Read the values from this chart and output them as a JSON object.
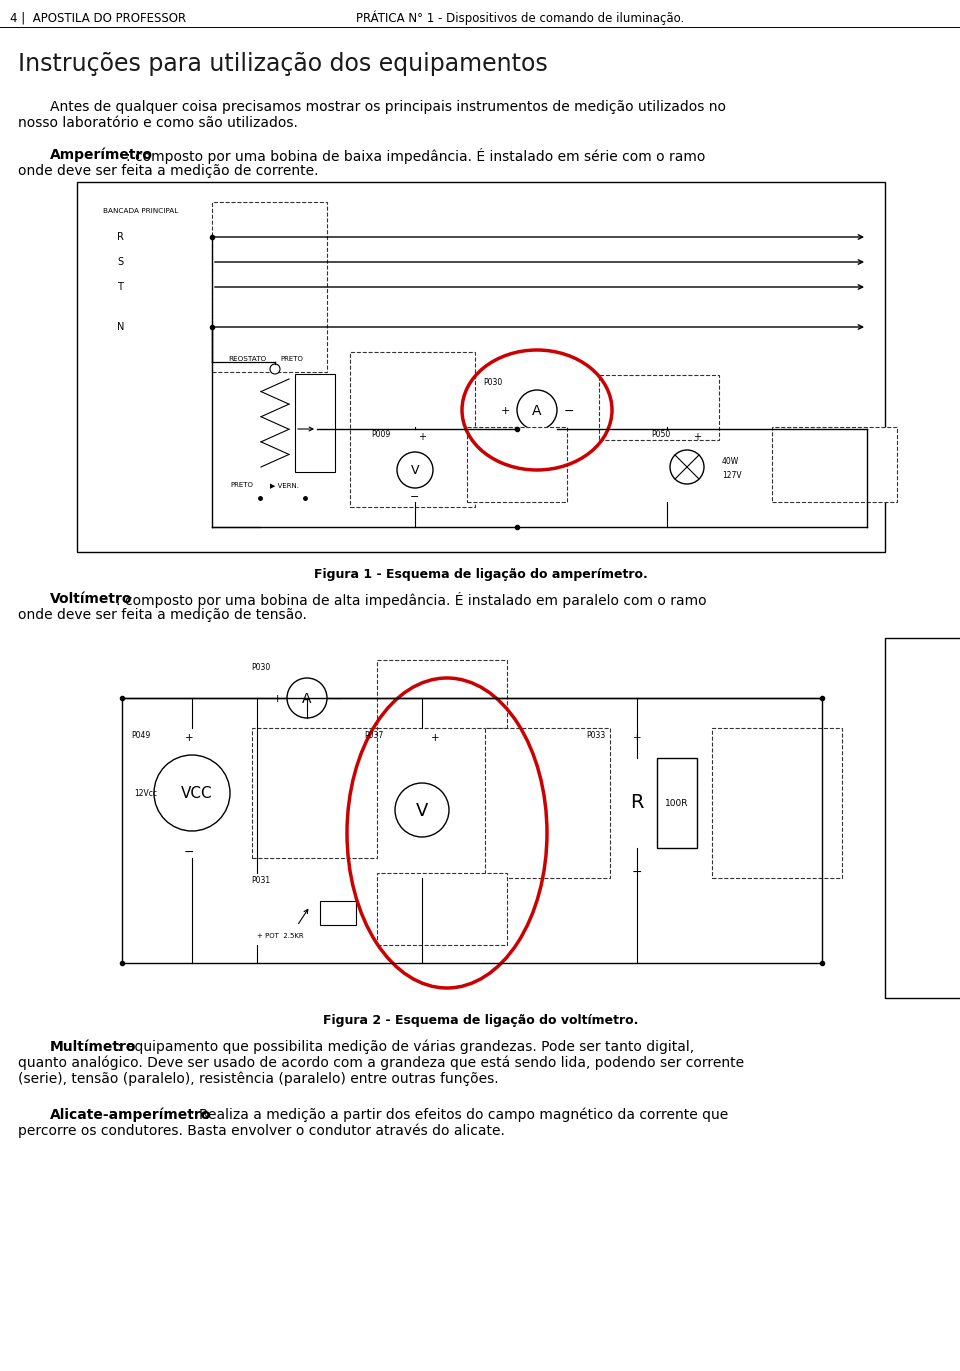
{
  "page_title_left": "4 |  APOSTILA DO PROFESSOR",
  "page_title_right": "PRÁTICA N° 1 - Dispositivos de comando de iluminação.",
  "section_title": "Instruções para utilização dos equipamentos",
  "intro_line1": "Antes de qualquer coisa precisamos mostrar os principais instrumentos de medição utilizados no",
  "intro_line2": "nosso laboratório e como são utilizados.",
  "amp_label": "Amperímetro",
  "amp_rest": ": composto por uma bobina de baixa impedância. É instalado em série com o ramo",
  "amp_line2": "onde deve ser feita a medição de corrente.",
  "fig1_caption": "Figura 1 - Esquema de ligação do amperímetro.",
  "volt_label": "Voltímetro",
  "volt_rest": ": composto por uma bobina de alta impedância. É instalado em paralelo com o ramo",
  "volt_line2": "onde deve ser feita a medição de tensão.",
  "fig2_caption": "Figura 2 - Esquema de ligação do voltímetro.",
  "multi_label": "Multímetro",
  "multi_rest": ": equipamento que possibilita medição de várias grandezas. Pode ser tanto digital,",
  "multi_line2": "quanto analógico. Deve ser usado de acordo com a grandeza que está sendo lida, podendo ser corrente",
  "multi_line3": "(serie), tensão (paralelo), resistência (paralelo) entre outras funções.",
  "alicate_label": "Alicate-amperímetro",
  "alicate_rest": ": Realiza a medição a partir dos efeitos do campo magnético da corrente que",
  "alicate_line2": "percorre os condutores. Basta envolver o condutor através do alicate.",
  "bg_color": "#ffffff",
  "red_color": "#cc0000"
}
